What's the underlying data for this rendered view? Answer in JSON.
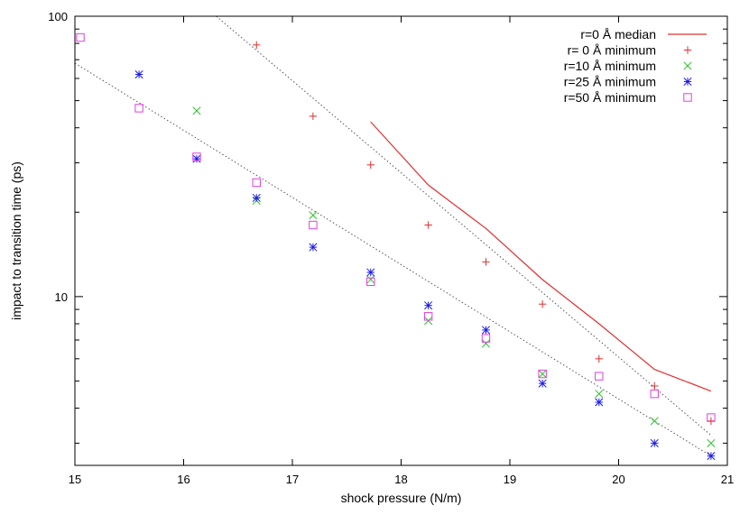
{
  "chart_data": {
    "type": "scatter",
    "xlabel": "shock pressure (N/m)",
    "ylabel": "impact to transition time (ps)",
    "xlim": [
      15,
      21
    ],
    "ylim": [
      2.5,
      100
    ],
    "y_scale": "log",
    "x_ticks": [
      15,
      16,
      17,
      18,
      19,
      20,
      21
    ],
    "y_ticks": [
      10,
      100
    ],
    "grid": false,
    "legend_position": "top-right",
    "series": [
      {
        "name": "r=0 Å median",
        "style": "line",
        "color": "#e03030",
        "points": [
          [
            17.72,
            42.0
          ],
          [
            18.25,
            25.0
          ],
          [
            18.78,
            17.5
          ],
          [
            19.3,
            11.5
          ],
          [
            19.82,
            8.0
          ],
          [
            20.33,
            5.5
          ],
          [
            20.85,
            4.6
          ]
        ]
      },
      {
        "name": "r=  0 Å minimum",
        "style": "marker-plus",
        "color": "#e03030",
        "points": [
          [
            16.67,
            79.0
          ],
          [
            17.19,
            44.0
          ],
          [
            17.72,
            29.5
          ],
          [
            18.25,
            18.0
          ],
          [
            18.78,
            13.3
          ],
          [
            19.3,
            9.4
          ],
          [
            19.82,
            6.0
          ],
          [
            20.33,
            4.8
          ],
          [
            20.85,
            3.6
          ]
        ]
      },
      {
        "name": "r=10 Å minimum",
        "style": "marker-x",
        "color": "#2ec02e",
        "points": [
          [
            16.12,
            46.0
          ],
          [
            16.67,
            22.0
          ],
          [
            17.19,
            19.5
          ],
          [
            17.72,
            11.5
          ],
          [
            18.25,
            8.2
          ],
          [
            18.78,
            6.8
          ],
          [
            19.3,
            5.3
          ],
          [
            19.82,
            4.5
          ],
          [
            20.33,
            3.6
          ],
          [
            20.85,
            3.0
          ]
        ]
      },
      {
        "name": "r=25 Å minimum",
        "style": "marker-star",
        "color": "#1a1ae6",
        "points": [
          [
            15.59,
            62.0
          ],
          [
            16.12,
            31.0
          ],
          [
            16.67,
            22.5
          ],
          [
            17.19,
            15.0
          ],
          [
            17.72,
            12.2
          ],
          [
            18.25,
            9.3
          ],
          [
            18.78,
            7.6
          ],
          [
            19.3,
            4.9
          ],
          [
            19.82,
            4.2
          ],
          [
            20.33,
            3.0
          ],
          [
            20.85,
            2.7
          ]
        ]
      },
      {
        "name": "r=50 Å minimum",
        "style": "marker-square",
        "color": "#e040e0",
        "points": [
          [
            15.05,
            84.0
          ],
          [
            15.59,
            47.0
          ],
          [
            16.12,
            31.5
          ],
          [
            16.67,
            25.5
          ],
          [
            17.19,
            18.0
          ],
          [
            17.72,
            11.3
          ],
          [
            18.25,
            8.5
          ],
          [
            18.78,
            7.1
          ],
          [
            19.3,
            5.3
          ],
          [
            19.82,
            5.2
          ],
          [
            20.33,
            4.5
          ],
          [
            20.85,
            3.7
          ]
        ]
      }
    ],
    "fit_lines": [
      {
        "style": "dotted",
        "color": "#555555",
        "points": [
          [
            16.3,
            100.0
          ],
          [
            20.85,
            3.2
          ]
        ]
      },
      {
        "style": "dotted",
        "color": "#555555",
        "points": [
          [
            15.0,
            68.0
          ],
          [
            20.85,
            2.7
          ]
        ]
      }
    ]
  }
}
